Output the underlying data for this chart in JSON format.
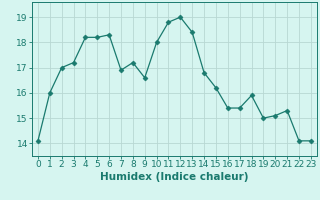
{
  "x": [
    0,
    1,
    2,
    3,
    4,
    5,
    6,
    7,
    8,
    9,
    10,
    11,
    12,
    13,
    14,
    15,
    16,
    17,
    18,
    19,
    20,
    21,
    22,
    23
  ],
  "y": [
    14.1,
    16.0,
    17.0,
    17.2,
    18.2,
    18.2,
    18.3,
    16.9,
    17.2,
    16.6,
    18.0,
    18.8,
    19.0,
    18.4,
    16.8,
    16.2,
    15.4,
    15.4,
    15.9,
    15.0,
    15.1,
    15.3,
    14.1,
    14.1
  ],
  "line_color": "#1a7a6e",
  "marker": "D",
  "marker_size": 2.5,
  "bg_color": "#d6f5f0",
  "grid_color": "#b8d8d3",
  "xlabel": "Humidex (Indice chaleur)",
  "ylim": [
    13.5,
    19.6
  ],
  "xlim": [
    -0.5,
    23.5
  ],
  "yticks": [
    14,
    15,
    16,
    17,
    18,
    19
  ],
  "xtick_labels": [
    "0",
    "1",
    "2",
    "3",
    "4",
    "5",
    "6",
    "7",
    "8",
    "9",
    "10",
    "11",
    "12",
    "13",
    "14",
    "15",
    "16",
    "17",
    "18",
    "19",
    "20",
    "21",
    "22",
    "23"
  ],
  "label_fontsize": 7.5,
  "tick_fontsize": 6.5
}
